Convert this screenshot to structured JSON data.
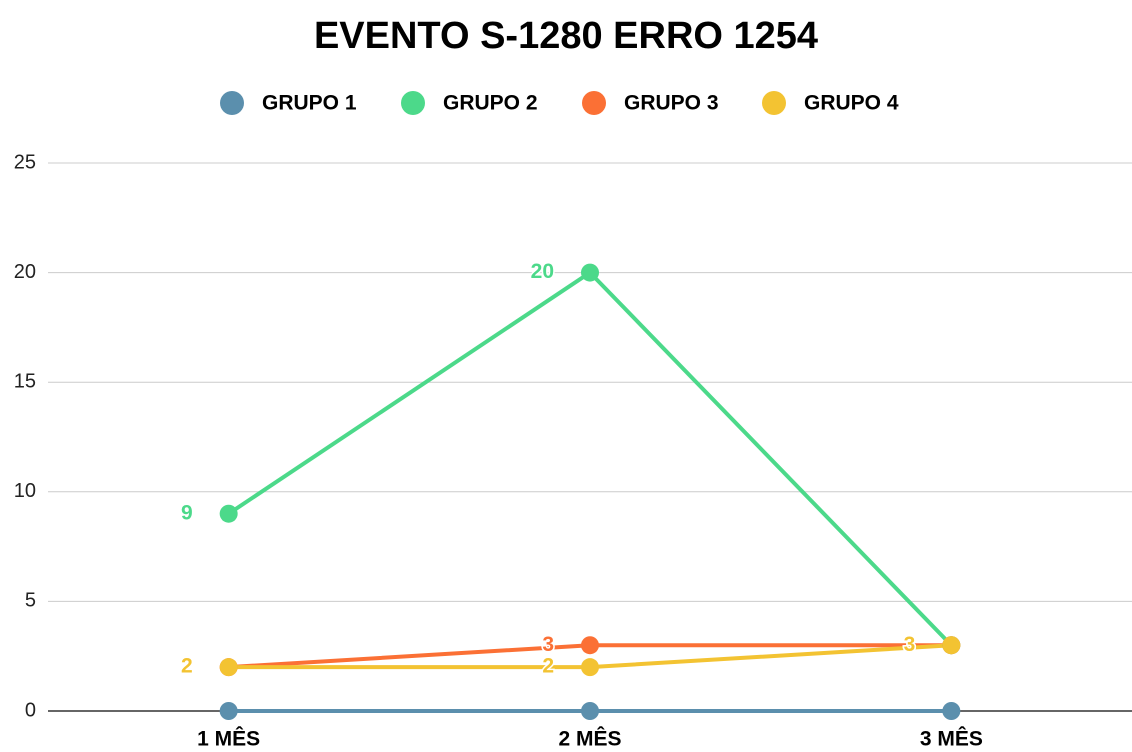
{
  "chart_data": {
    "type": "line",
    "title": "EVENTO S-1280 ERRO 1254",
    "categories": [
      "1 MÊS",
      "2 MÊS",
      "3 MÊS"
    ],
    "series": [
      {
        "name": "GRUPO 1",
        "color": "#5b8fad",
        "values": [
          0,
          0,
          0
        ],
        "data_labels": false
      },
      {
        "name": "GRUPO 2",
        "color": "#4cd98a",
        "values": [
          9,
          20,
          3
        ],
        "data_labels": true
      },
      {
        "name": "GRUPO 3",
        "color": "#fb7035",
        "values": [
          2,
          3,
          3
        ],
        "data_labels": true
      },
      {
        "name": "GRUPO 4",
        "color": "#f3c332",
        "values": [
          2,
          2,
          3
        ],
        "data_labels": true
      }
    ],
    "ylim": [
      0,
      25
    ],
    "yticks": [
      0,
      5,
      10,
      15,
      20,
      25
    ],
    "grid": true,
    "legend": "top"
  }
}
